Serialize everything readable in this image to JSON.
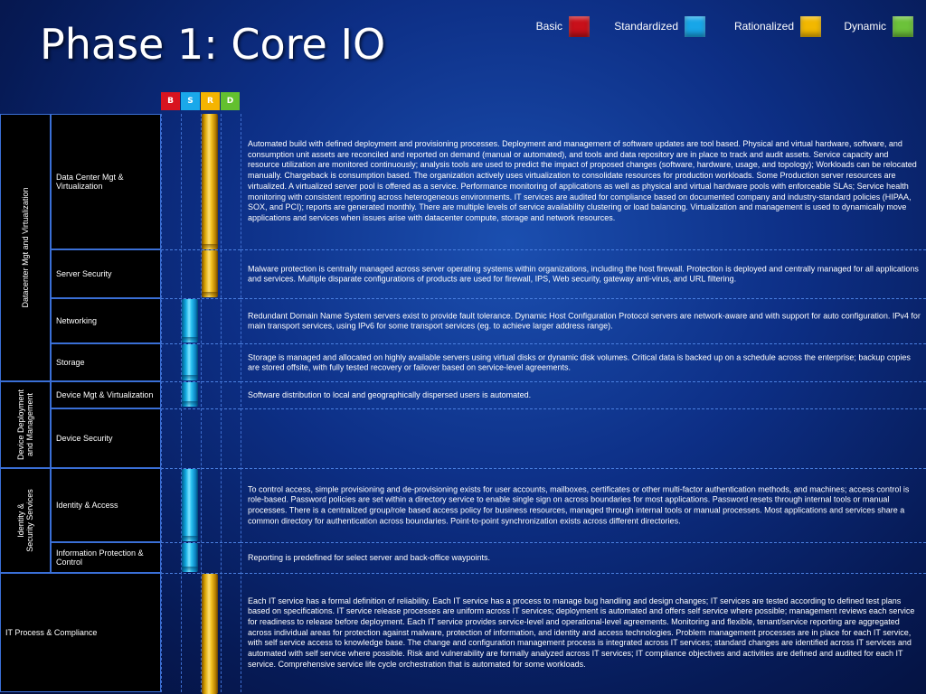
{
  "title": "Phase 1: Core IO",
  "legend": [
    {
      "label": "Basic",
      "color": "#c8101a"
    },
    {
      "label": "Standardized",
      "color": "#18a6e8"
    },
    {
      "label": "Rationalized",
      "color": "#f2b800"
    },
    {
      "label": "Dynamic",
      "color": "#6cc23a"
    }
  ],
  "column_headers": [
    {
      "label": "B",
      "color": "#d8141f"
    },
    {
      "label": "S",
      "color": "#1aa8ea"
    },
    {
      "label": "R",
      "color": "#f5b400"
    },
    {
      "label": "D",
      "color": "#63c02f"
    }
  ],
  "categories": [
    {
      "label": "Datacenter Mgt and Virtualization"
    },
    {
      "label": "Device Deployment and Management"
    },
    {
      "label": "Identity & Security Services"
    },
    {
      "label": "IT Process & Compliance"
    }
  ],
  "rows": [
    {
      "name": "Data Center Mgt & Virtualization",
      "level": "R",
      "description": "Automated build with defined deployment and provisioning processes. Deployment and management of software updates are tool based. Physical and virtual hardware, software, and consumption unit assets are reconciled and reported on demand (manual or automated), and tools and data repository are in place to track and audit assets. Service capacity and resource utilization are monitored continuously; analysis tools are used to predict the impact of proposed changes (software, hardware, usage, and topology); Workloads can be relocated manually. Chargeback is consumption based. The organization actively uses virtualization to consolidate resources for production workloads. Some Production server resources are virtualized. A virtualized server pool is offered as a service. Performance monitoring of applications as well as physical and virtual hardware pools with enforceable SLAs; Service health monitoring with consistent reporting across heterogeneous environments. IT services are audited for compliance based on documented company and industry-standard policies (HIPAA, SOX, and PCI); reports are generated monthly. There are multiple levels of service availability clustering or load balancing. Virtualization and management is used to dynamically move applications and services when issues arise with datacenter compute, storage and network resources."
    },
    {
      "name": "Server Security",
      "level": "R",
      "description": "Malware protection is centrally managed across server operating systems within organizations, including the host firewall. Protection is deployed and centrally managed for all applications and services. Multiple disparate configurations of products are used for firewall, IPS, Web security, gateway anti-virus, and URL filtering."
    },
    {
      "name": "Networking",
      "level": "S",
      "description": "Redundant Domain Name System servers exist to provide fault tolerance. Dynamic Host Configuration Protocol servers are network-aware and with support for auto configuration. IPv4 for main transport services, using IPv6 for some transport services (eg. to achieve larger address range)."
    },
    {
      "name": "Storage",
      "level": "S",
      "description": "Storage is managed and allocated on highly available servers using virtual disks or dynamic disk volumes. Critical data is backed up on a schedule across the enterprise; backup copies are stored offsite, with fully tested recovery or failover based on service-level agreements."
    },
    {
      "name": "Device Mgt & Virtualization",
      "level": "S",
      "description": "Software distribution to local and geographically dispersed users is automated."
    },
    {
      "name": "Device Security",
      "level": "",
      "description": ""
    },
    {
      "name": "Identity & Access",
      "level": "S",
      "description": "To control access, simple provisioning and de-provisioning exists for user accounts, mailboxes, certificates or other multi-factor authentication methods, and machines; access control is role-based. Password policies are set within a directory service to enable single sign on across boundaries for most applications. Password resets through internal tools or manual processes. There is a centralized group/role based access policy for business resources, managed through internal tools or manual processes. Most applications and services share a common directory for authentication across boundaries. Point-to-point synchronization exists across different directories."
    },
    {
      "name": "Information Protection & Control",
      "level": "S",
      "description": "Reporting is predefined for select server and back-office waypoints."
    },
    {
      "name": "IT Process & Compliance",
      "level": "R",
      "description": "Each IT service has a formal definition of reliability. Each IT service has a process to manage bug handling and design changes; IT services are tested according to defined test plans based on specifications. IT service release processes are uniform across IT services; deployment is automated and offers self service where possible; management reviews each service for readiness to release before deployment. Each IT service provides service-level and operational-level agreements. Monitoring and flexible, tenant/service reporting are aggregated across individual areas for protection against malware, protection of information, and identity and access technologies. Problem management processes are in place for each IT service, with self service access to knowledge base. The change and configuration management process is integrated across IT services; standard changes are identified across IT services and automated with self service where possible. Risk and vulnerability are formally analyzed across IT services; IT compliance objectives and activities are defined and audited for each IT service. Comprehensive service life cycle orchestration that is automated for some workloads."
    }
  ]
}
